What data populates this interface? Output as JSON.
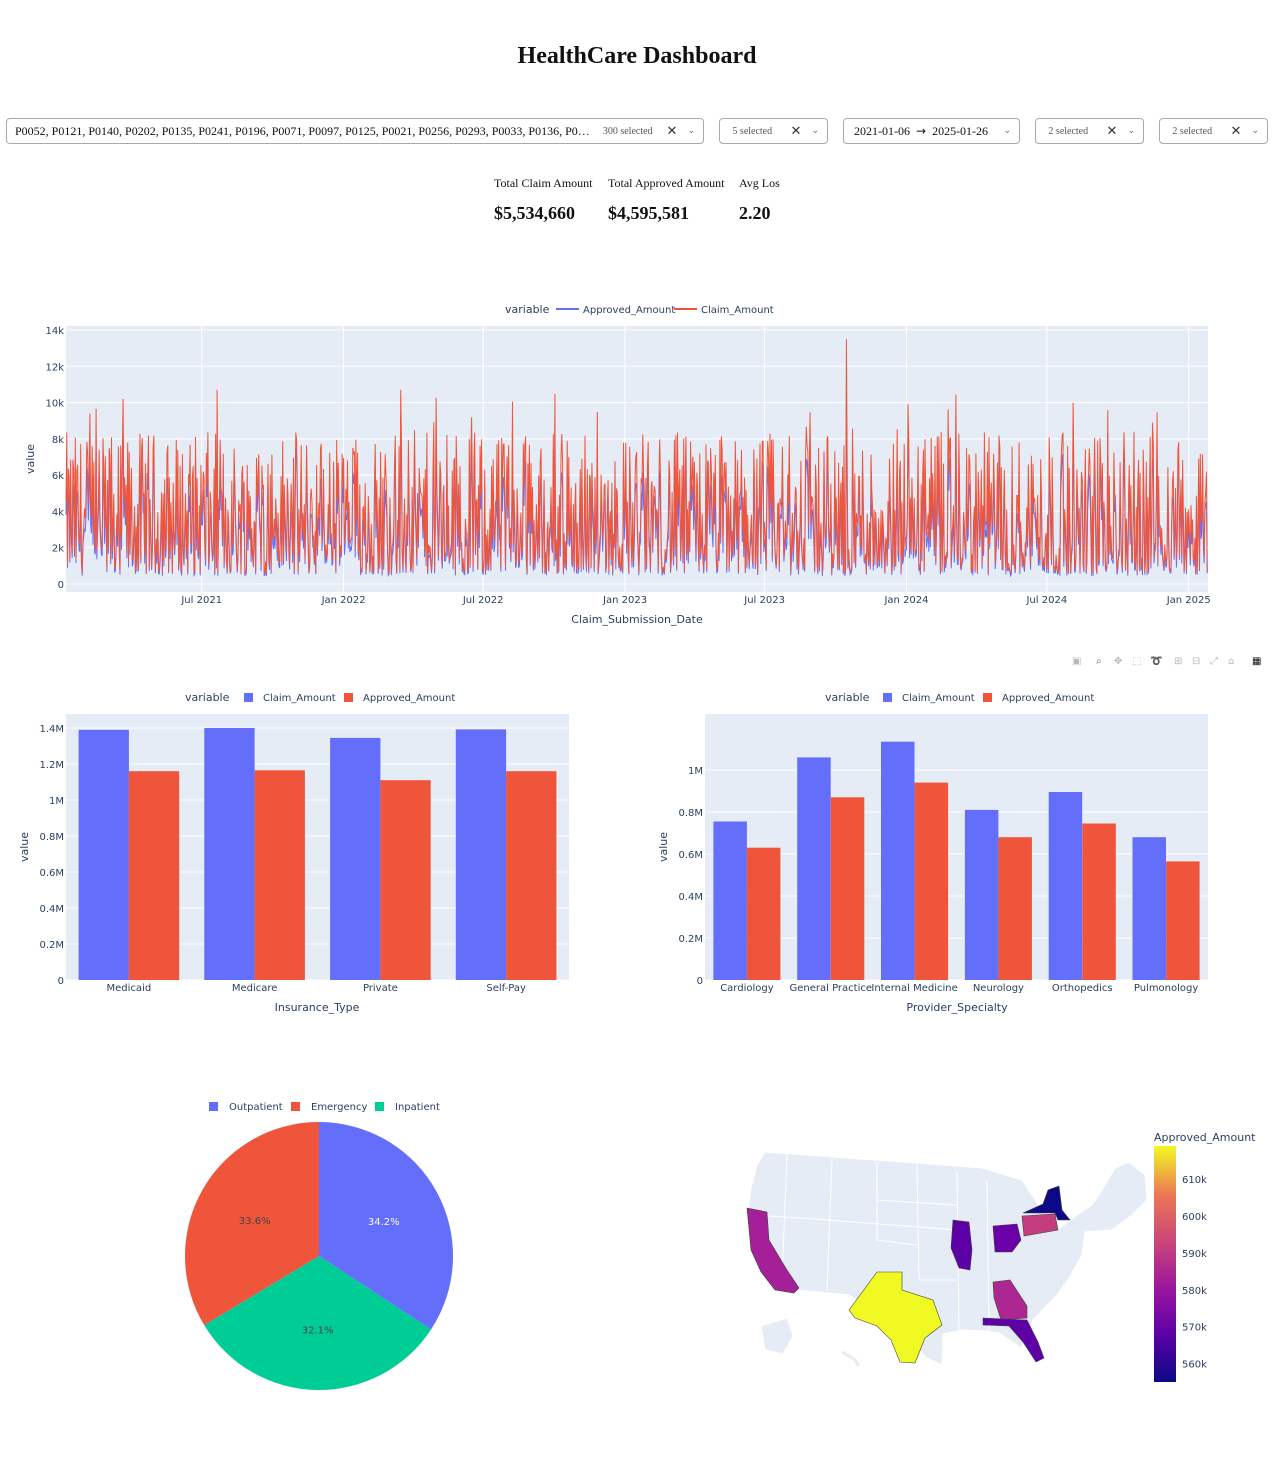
{
  "page_title": "HealthCare Dashboard",
  "filters": {
    "patient": {
      "values": "P0052, P0121, P0140, P0202, P0135, P0241, P0196, P0071, P0097, P0125, P0021, P0256, P0293, P0033, P0136, P0…",
      "count": "300 selected"
    },
    "f2": {
      "count": "5 selected"
    },
    "date": {
      "start": "2021-01-06",
      "arrow": "→",
      "end": "2025-01-26"
    },
    "f4": {
      "count": "2 selected"
    },
    "f5": {
      "count": "2 selected"
    }
  },
  "kpis": {
    "claim_label": "Total Claim Amount",
    "claim_value": "$5,534,660",
    "approved_label": "Total Approved Amount",
    "approved_value": "$4,595,581",
    "los_label": "Avg Los",
    "los_value": "2.20"
  },
  "colors": {
    "blue": "#636efa",
    "red": "#ef553b",
    "green": "#00cc96",
    "plot_bg": "#e5ecf6"
  },
  "icons": [
    "camera-icon",
    "zoom-icon",
    "pan-icon",
    "box-select-icon",
    "lasso-icon",
    "zoom-in-icon",
    "zoom-out-icon",
    "autoscale-icon",
    "reset-axes-icon",
    "plotly-logo-icon"
  ],
  "chart_data": [
    {
      "type": "line",
      "legend_title": "variable",
      "series_names": [
        "Approved_Amount",
        "Claim_Amount"
      ],
      "xlabel": "Claim_Submission_Date",
      "ylabel": "value",
      "xlim": [
        "2021-01-06",
        "2025-01-26"
      ],
      "ylim": [
        0,
        14000
      ],
      "y_ticks": [
        "0",
        "2k",
        "4k",
        "6k",
        "8k",
        "10k",
        "12k",
        "14k"
      ],
      "x_ticks": [
        "Jul 2021",
        "Jan 2022",
        "Jul 2022",
        "Jan 2023",
        "Jul 2023",
        "Jan 2024",
        "Jul 2024",
        "Jan 2025"
      ],
      "note_series": "daily values, dense; claim peak ~13.5k around Oct 2023"
    },
    {
      "type": "bar",
      "legend_title": "variable",
      "categories": [
        "Medicaid",
        "Medicare",
        "Private",
        "Self-Pay"
      ],
      "series": [
        {
          "name": "Claim_Amount",
          "values": [
            1390000,
            1400000,
            1345000,
            1392000
          ]
        },
        {
          "name": "Approved_Amount",
          "values": [
            1160000,
            1165000,
            1110000,
            1160000
          ]
        }
      ],
      "xlabel": "Insurance_Type",
      "ylabel": "value",
      "ylim": [
        0,
        1400000
      ],
      "y_ticks": [
        "0",
        "0.2M",
        "0.4M",
        "0.6M",
        "0.8M",
        "1M",
        "1.2M",
        "1.4M"
      ]
    },
    {
      "type": "bar",
      "legend_title": "variable",
      "categories": [
        "Cardiology",
        "General Practice",
        "Internal Medicine",
        "Neurology",
        "Orthopedics",
        "Pulmonology"
      ],
      "series": [
        {
          "name": "Claim_Amount",
          "values": [
            755000,
            1060000,
            1135000,
            810000,
            895000,
            680000
          ]
        },
        {
          "name": "Approved_Amount",
          "values": [
            630000,
            870000,
            940000,
            680000,
            745000,
            565000
          ]
        }
      ],
      "xlabel": "Provider_Specialty",
      "ylabel": "value",
      "ylim": [
        0,
        1200000
      ],
      "y_ticks": [
        "0",
        "0.2M",
        "0.4M",
        "0.6M",
        "0.8M",
        "1M"
      ]
    },
    {
      "type": "pie",
      "labels": [
        "Outpatient",
        "Emergency",
        "Inpatient"
      ],
      "values": [
        34.2,
        33.6,
        32.1
      ],
      "value_labels": [
        "34.2%",
        "33.6%",
        "32.1%"
      ]
    },
    {
      "type": "choropleth",
      "colorbar_title": "Approved_Amount",
      "colorbar_ticks": [
        "560k",
        "570k",
        "580k",
        "590k",
        "600k",
        "610k"
      ],
      "range": [
        555000,
        619000
      ],
      "states": {
        "TX": 618000,
        "PA": 588000,
        "CA": 578000,
        "GA": 579000,
        "OH": 565000,
        "IL": 563000,
        "FL": 563000,
        "NY": 556000
      }
    }
  ]
}
